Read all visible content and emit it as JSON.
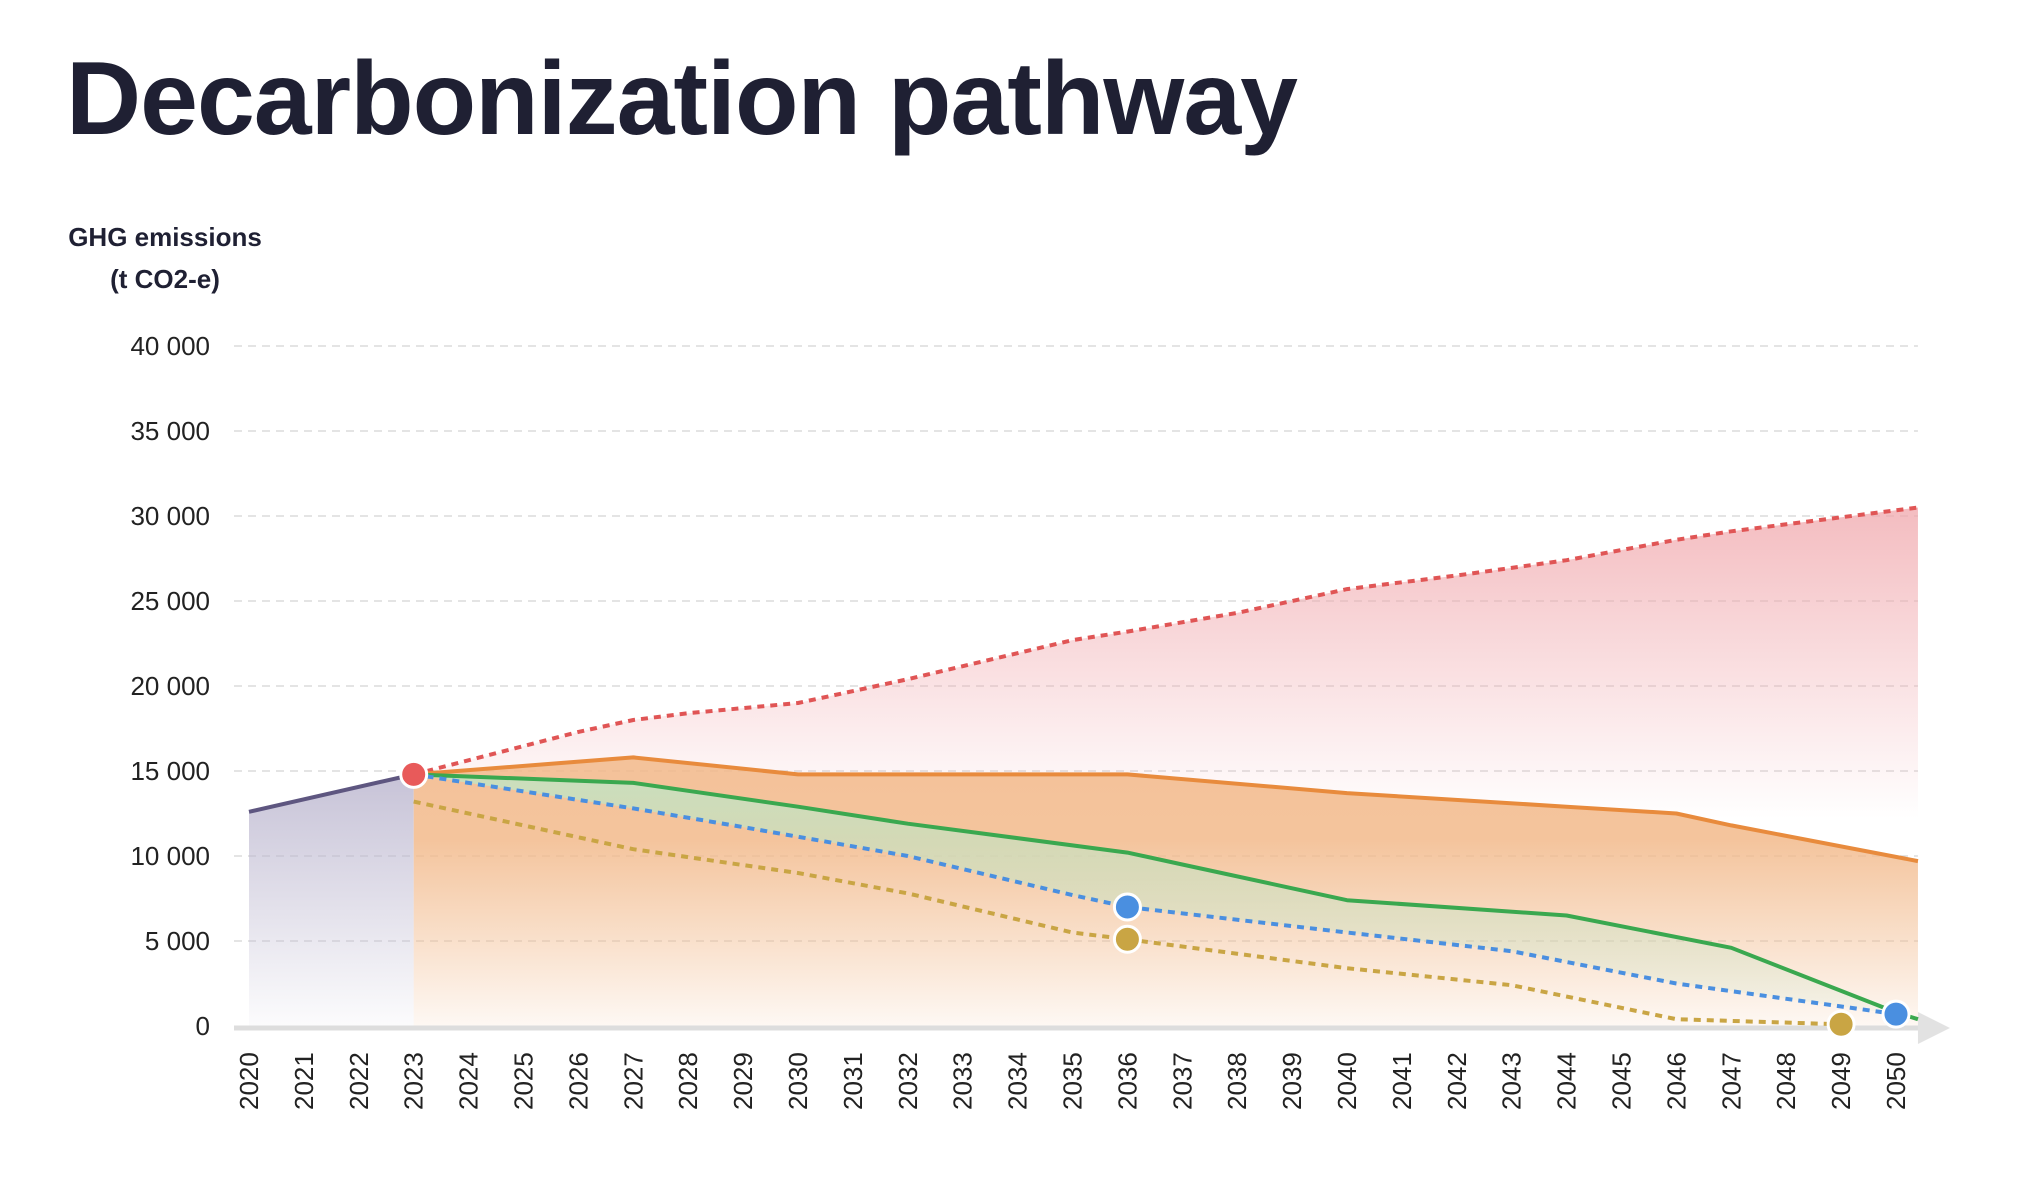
{
  "chart_data": {
    "type": "line",
    "title": "Decarbonization pathway",
    "ylabel_lines": [
      "GHG emissions",
      "(t CO2-e)"
    ],
    "xlabel": "",
    "ylim": [
      0,
      40000
    ],
    "yticks": [
      0,
      5000,
      10000,
      15000,
      20000,
      25000,
      30000,
      35000,
      40000
    ],
    "ytick_labels": [
      "0",
      "5 000",
      "10 000",
      "15 000",
      "20 000",
      "25 000",
      "30 000",
      "35 000",
      "40 000"
    ],
    "xlim": [
      2020,
      2050.4
    ],
    "x_categories": [
      "2020",
      "2021",
      "2022",
      "2023",
      "2024",
      "2025",
      "2026",
      "2027",
      "2028",
      "2029",
      "2030",
      "2031",
      "2032",
      "2033",
      "2034",
      "2035",
      "2036",
      "2037",
      "2038",
      "2039",
      "2040",
      "2041",
      "2042",
      "2043",
      "2044",
      "2045",
      "2046",
      "2047",
      "2048",
      "2049",
      "2050"
    ],
    "grid": "horizontal-dashed",
    "legend": "none",
    "series": [
      {
        "key": "historical",
        "color": "#5e5680",
        "style": "solid",
        "fill": "#bdb8d0",
        "x": [
          2020,
          2023
        ],
        "y": [
          12600,
          14800
        ]
      },
      {
        "key": "red_dotted",
        "color": "#e05555",
        "style": "dotted",
        "fill": "#f0a6ab",
        "x": [
          2023,
          2026,
          2027,
          2028,
          2030,
          2032,
          2035,
          2036,
          2038,
          2040,
          2042,
          2044,
          2046,
          2047,
          2050.4
        ],
        "y": [
          14800,
          17300,
          18000,
          18400,
          19000,
          20400,
          22700,
          23200,
          24300,
          25700,
          26500,
          27400,
          28600,
          29100,
          30500
        ]
      },
      {
        "key": "orange",
        "color": "#e88b3d",
        "style": "solid",
        "fill": "#f2b98a",
        "x": [
          2023,
          2027,
          2030,
          2036,
          2040,
          2044,
          2046,
          2047,
          2050.4
        ],
        "y": [
          14800,
          15800,
          14800,
          14800,
          13700,
          12900,
          12500,
          11800,
          9700
        ]
      },
      {
        "key": "green",
        "color": "#3aa84f",
        "style": "solid",
        "fill": "#bfe6c6",
        "x": [
          2023,
          2027,
          2030,
          2032,
          2036,
          2037,
          2040,
          2044,
          2047,
          2050,
          2050.4
        ],
        "y": [
          14800,
          14300,
          12900,
          11900,
          10200,
          9500,
          7400,
          6500,
          4600,
          800,
          400
        ]
      },
      {
        "key": "blue_dotted",
        "color": "#4a8fe0",
        "style": "dotted",
        "x": [
          2023,
          2027,
          2029,
          2032,
          2035,
          2036,
          2040,
          2043,
          2046,
          2050
        ],
        "y": [
          14800,
          12800,
          11700,
          10000,
          7700,
          7000,
          5500,
          4400,
          2500,
          700
        ]
      },
      {
        "key": "gold_dotted",
        "color": "#c9a544",
        "style": "dotted",
        "x": [
          2023,
          2027,
          2030,
          2032,
          2035,
          2036,
          2040,
          2043,
          2046,
          2049
        ],
        "y": [
          13200,
          10400,
          9000,
          7800,
          5500,
          5100,
          3400,
          2400,
          400,
          100
        ]
      }
    ],
    "markers": [
      {
        "x": 2023,
        "y": 14800,
        "color": "#e85a5a"
      },
      {
        "x": 2036,
        "y": 7000,
        "color": "#4a8fe0"
      },
      {
        "x": 2036,
        "y": 5100,
        "color": "#c9a544"
      },
      {
        "x": 2049,
        "y": 100,
        "color": "#c9a544"
      },
      {
        "x": 2050,
        "y": 700,
        "color": "#4a8fe0"
      }
    ]
  }
}
